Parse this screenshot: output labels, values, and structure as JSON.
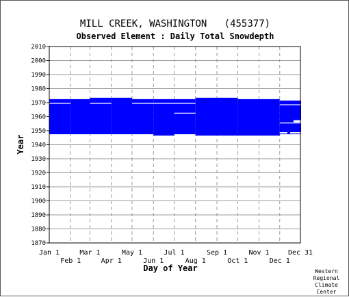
{
  "chart_data": {
    "type": "heatmap",
    "title": "MILL CREEK, WASHINGTON   (455377)",
    "subtitle": "Observed Element : Daily Total Snowdepth",
    "xlabel": "Day of Year",
    "ylabel": "Year",
    "credit": [
      "Western",
      "Regional",
      "Climate",
      "Center"
    ],
    "xlim": [
      1,
      365
    ],
    "ylim": [
      1870,
      2010
    ],
    "x_ticks_upper": [
      {
        "label": "Jan 1",
        "day": 1
      },
      {
        "label": "Mar 1",
        "day": 60
      },
      {
        "label": "May 1",
        "day": 121
      },
      {
        "label": "Jul 1",
        "day": 182
      },
      {
        "label": "Sep 1",
        "day": 244
      },
      {
        "label": "Nov 1",
        "day": 305
      },
      {
        "label": "Dec 31",
        "day": 365
      }
    ],
    "x_ticks_lower": [
      {
        "label": "Feb 1",
        "day": 32
      },
      {
        "label": "Apr 1",
        "day": 91
      },
      {
        "label": "Jun 1",
        "day": 152
      },
      {
        "label": "Aug 1",
        "day": 213
      },
      {
        "label": "Oct 1",
        "day": 274
      },
      {
        "label": "Dec 1",
        "day": 335
      }
    ],
    "y_ticks": [
      1870,
      1880,
      1890,
      1900,
      1910,
      1920,
      1930,
      1940,
      1950,
      1960,
      1970,
      1980,
      1990,
      2000,
      2010
    ],
    "grid": true,
    "series": [
      {
        "color": "#0000ff",
        "values": [
          {
            "start_day": 1,
            "end_day": 31,
            "year_start": 1948,
            "year_end": 1972
          },
          {
            "start_day": 32,
            "end_day": 59,
            "year_start": 1948,
            "year_end": 1972
          },
          {
            "start_day": 60,
            "end_day": 90,
            "year_start": 1948,
            "year_end": 1973
          },
          {
            "start_day": 91,
            "end_day": 120,
            "year_start": 1948,
            "year_end": 1973
          },
          {
            "start_day": 121,
            "end_day": 151,
            "year_start": 1948,
            "year_end": 1972
          },
          {
            "start_day": 152,
            "end_day": 181,
            "year_start": 1947,
            "year_end": 1972
          },
          {
            "start_day": 182,
            "end_day": 212,
            "year_start": 1948,
            "year_end": 1972
          },
          {
            "start_day": 213,
            "end_day": 243,
            "year_start": 1947,
            "year_end": 1973
          },
          {
            "start_day": 244,
            "end_day": 273,
            "year_start": 1947,
            "year_end": 1973
          },
          {
            "start_day": 274,
            "end_day": 304,
            "year_start": 1947,
            "year_end": 1972
          },
          {
            "start_day": 305,
            "end_day": 334,
            "year_start": 1947,
            "year_end": 1972
          },
          {
            "start_day": 335,
            "end_day": 365,
            "year_start": 1948,
            "year_end": 1971
          }
        ],
        "gaps": [
          {
            "start_day": 1,
            "end_day": 31,
            "year_start": 1969.2,
            "year_end": 1969.8
          },
          {
            "start_day": 60,
            "end_day": 90,
            "year_start": 1969.2,
            "year_end": 1969.8
          },
          {
            "start_day": 121,
            "end_day": 181,
            "year_start": 1969.2,
            "year_end": 1969.8
          },
          {
            "start_day": 182,
            "end_day": 212,
            "year_start": 1969.2,
            "year_end": 1969.8
          },
          {
            "start_day": 182,
            "end_day": 212,
            "year_start": 1962.2,
            "year_end": 1962.8
          },
          {
            "start_day": 335,
            "end_day": 365,
            "year_start": 1955.2,
            "year_end": 1955.8
          },
          {
            "start_day": 335,
            "end_day": 365,
            "year_start": 1968.2,
            "year_end": 1968.8
          },
          {
            "start_day": 335,
            "end_day": 345,
            "year_start": 1948,
            "year_end": 1949
          },
          {
            "start_day": 350,
            "end_day": 365,
            "year_start": 1948,
            "year_end": 1949
          },
          {
            "start_day": 355,
            "end_day": 365,
            "year_start": 1956,
            "year_end": 1957.5
          }
        ]
      }
    ]
  }
}
